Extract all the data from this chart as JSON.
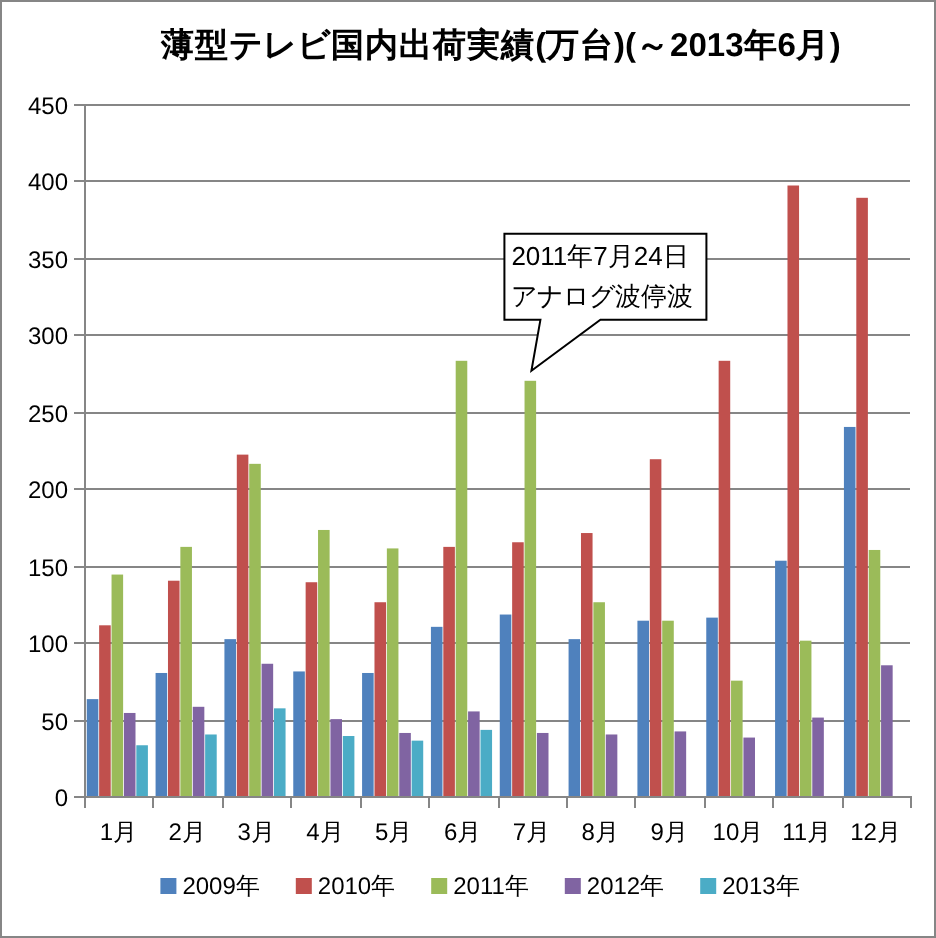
{
  "chart_data": {
    "type": "bar",
    "title": "薄型テレビ国内出荷実績(万台)(～2013年6月)",
    "categories": [
      "1月",
      "2月",
      "3月",
      "4月",
      "5月",
      "6月",
      "7月",
      "8月",
      "9月",
      "10月",
      "11月",
      "12月"
    ],
    "series": [
      {
        "name": "2009年",
        "color": "#4f81bd",
        "values": [
          63,
          80,
          102,
          81,
          80,
          110,
          118,
          102,
          114,
          116,
          153,
          240
        ]
      },
      {
        "name": "2010年",
        "color": "#c0504d",
        "values": [
          111,
          140,
          222,
          139,
          126,
          162,
          165,
          171,
          219,
          283,
          397,
          389
        ]
      },
      {
        "name": "2011年",
        "color": "#9bbb59",
        "values": [
          144,
          162,
          216,
          173,
          161,
          283,
          270,
          126,
          114,
          75,
          101,
          160
        ]
      },
      {
        "name": "2012年",
        "color": "#8064a2",
        "values": [
          54,
          58,
          86,
          50,
          41,
          55,
          41,
          40,
          42,
          38,
          51,
          85
        ]
      },
      {
        "name": "2013年",
        "color": "#4bacc6",
        "values": [
          33,
          40,
          57,
          39,
          36,
          43,
          null,
          null,
          null,
          null,
          null,
          null
        ]
      }
    ],
    "ylim": [
      0,
      450
    ],
    "yticks": [
      0,
      50,
      100,
      150,
      200,
      250,
      300,
      350,
      400,
      450
    ],
    "grid": "y",
    "legend": "bottom",
    "annotations": [
      {
        "text": "2011年7月24日アナログ波停波",
        "x": "7月",
        "y": 270
      }
    ]
  }
}
